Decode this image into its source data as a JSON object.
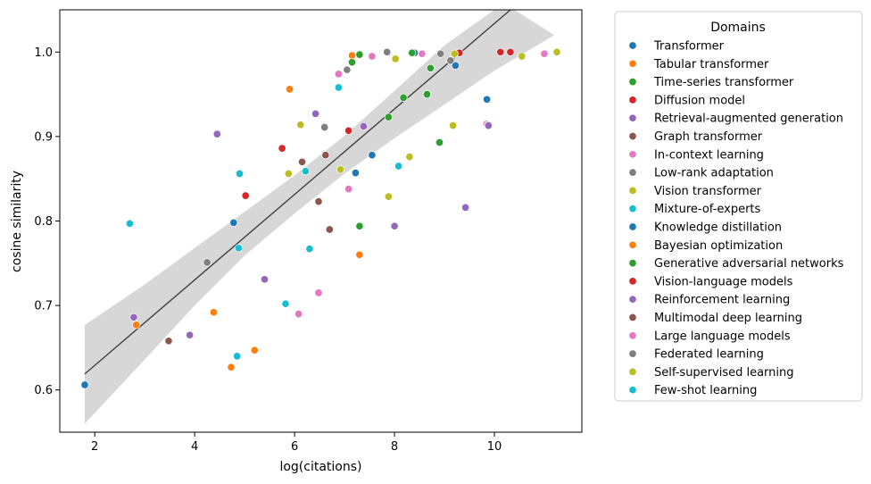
{
  "chart_data": {
    "type": "scatter",
    "xlabel": "log(citations)",
    "ylabel": "cosine similarity",
    "xlim": [
      1.3,
      11.75
    ],
    "ylim": [
      0.55,
      1.05
    ],
    "xticks": [
      2,
      4,
      6,
      8,
      10
    ],
    "yticks": [
      0.6,
      0.7,
      0.8,
      0.9,
      1.0
    ],
    "xtick_labels": [
      "2",
      "4",
      "6",
      "8",
      "10"
    ],
    "ytick_labels": [
      "0.6",
      "0.7",
      "0.8",
      "0.9",
      "1.0"
    ],
    "grid": false,
    "legend": {
      "title": "Domains",
      "placement": "outside-right"
    },
    "regression": {
      "type": "linear-fit-with-95%-ci",
      "line": [
        [
          1.8,
          0.619
        ],
        [
          10.32,
          1.05
        ]
      ],
      "band_upper": [
        [
          1.8,
          0.677
        ],
        [
          3,
          0.725
        ],
        [
          4,
          0.768
        ],
        [
          5,
          0.811
        ],
        [
          6,
          0.854
        ],
        [
          7,
          0.901
        ],
        [
          8,
          0.954
        ],
        [
          9,
          1.008
        ],
        [
          10,
          1.06
        ],
        [
          10.4,
          1.05
        ]
      ],
      "band_lower": [
        [
          1.8,
          0.56
        ],
        [
          3,
          0.636
        ],
        [
          4,
          0.7
        ],
        [
          5,
          0.759
        ],
        [
          6,
          0.809
        ],
        [
          7,
          0.856
        ],
        [
          8,
          0.898
        ],
        [
          9,
          0.938
        ],
        [
          10,
          0.978
        ],
        [
          11.2,
          1.02
        ]
      ]
    },
    "series": [
      {
        "name": "Transformer",
        "color": "#1f77b4",
        "x": [
          1.8,
          4.78,
          7.22,
          7.55,
          8.4,
          9.22,
          9.85
        ],
        "y": [
          0.606,
          0.798,
          0.857,
          0.878,
          0.999,
          0.984,
          0.944
        ]
      },
      {
        "name": "Tabular transformer",
        "color": "#ff7f0e",
        "x": [
          2.83,
          4.38,
          4.73,
          5.2,
          5.9,
          7.15,
          7.3
        ],
        "y": [
          0.677,
          0.692,
          0.627,
          0.647,
          0.956,
          0.996,
          0.76
        ]
      },
      {
        "name": "Time-series transformer",
        "color": "#2ca02c",
        "x": [
          7.15,
          7.3,
          7.88,
          8.35,
          8.72,
          8.9
        ],
        "y": [
          0.988,
          0.997,
          0.923,
          0.999,
          0.981,
          0.893
        ]
      },
      {
        "name": "Diffusion model",
        "color": "#d62728",
        "x": [
          5.02,
          5.75,
          7.08,
          9.3,
          10.12,
          10.32
        ],
        "y": [
          0.83,
          0.886,
          0.907,
          0.999,
          1.0,
          1.0
        ]
      },
      {
        "name": "Retrieval-augmented generation",
        "color": "#9467bd",
        "x": [
          2.78,
          3.9,
          4.45,
          5.4,
          6.42,
          7.38,
          8.0,
          9.42
        ],
        "y": [
          0.686,
          0.665,
          0.903,
          0.731,
          0.927,
          0.912,
          0.794,
          0.816
        ]
      },
      {
        "name": "Graph transformer",
        "color": "#8c564b",
        "x": [
          3.48,
          6.15,
          6.48,
          6.62,
          6.7
        ],
        "y": [
          0.658,
          0.87,
          0.823,
          0.878,
          0.79
        ]
      },
      {
        "name": "In-context learning",
        "color": "#e377c2",
        "x": [
          6.08,
          6.48,
          6.88,
          7.08,
          7.55,
          8.55,
          9.85,
          11.0
        ],
        "y": [
          0.69,
          0.715,
          0.974,
          0.838,
          0.995,
          0.998,
          0.915,
          0.998
        ]
      },
      {
        "name": "Low-rank adaptation",
        "color": "#7f7f7f",
        "x": [
          4.25,
          6.6,
          7.85,
          8.92,
          9.12,
          9.88
        ],
        "y": [
          0.751,
          0.911,
          1.0,
          0.998,
          0.99,
          0.914
        ]
      },
      {
        "name": "Vision transformer",
        "color": "#bcbd22",
        "x": [
          5.88,
          6.12,
          6.92,
          7.88,
          8.02,
          8.3,
          9.17,
          9.2,
          10.55,
          11.25
        ],
        "y": [
          0.856,
          0.914,
          0.861,
          0.829,
          0.992,
          0.876,
          0.913,
          0.998,
          0.995,
          1.0
        ]
      },
      {
        "name": "Mixture-of-experts",
        "color": "#17becf",
        "x": [
          2.7,
          4.85,
          4.88,
          4.9,
          6.22,
          6.3,
          5.82,
          6.88,
          8.08
        ],
        "y": [
          0.797,
          0.64,
          0.768,
          0.856,
          0.859,
          0.767,
          0.702,
          0.958,
          0.865
        ]
      },
      {
        "name": "Knowledge distillation",
        "color": "#1f77b4",
        "x": [],
        "y": []
      },
      {
        "name": "Bayesian optimization",
        "color": "#ff7f0e",
        "x": [],
        "y": []
      },
      {
        "name": "Generative adversarial networks",
        "color": "#2ca02c",
        "x": [
          7.3,
          8.18,
          8.65
        ],
        "y": [
          0.794,
          0.946,
          0.95
        ]
      },
      {
        "name": "Vision-language models",
        "color": "#d62728",
        "x": [],
        "y": []
      },
      {
        "name": "Reinforcement learning",
        "color": "#9467bd",
        "x": [
          9.88
        ],
        "y": [
          0.913
        ]
      },
      {
        "name": "Multimodal deep learning",
        "color": "#8c564b",
        "x": [],
        "y": []
      },
      {
        "name": "Large language models",
        "color": "#e377c2",
        "x": [],
        "y": []
      },
      {
        "name": "Federated learning",
        "color": "#7f7f7f",
        "x": [
          7.05
        ],
        "y": [
          0.979
        ]
      },
      {
        "name": "Self-supervised learning",
        "color": "#bcbd22",
        "x": [],
        "y": []
      },
      {
        "name": "Few-shot learning",
        "color": "#17becf",
        "x": [],
        "y": []
      }
    ]
  }
}
